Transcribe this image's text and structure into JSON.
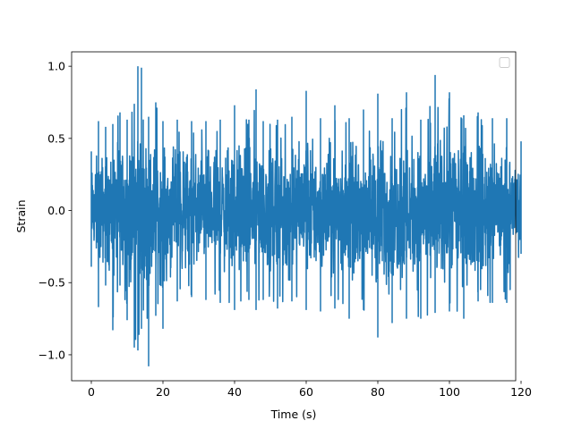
{
  "chart_data": {
    "type": "line",
    "title": "",
    "xlabel": "Time (s)",
    "ylabel": "Strain",
    "xlim": [
      -5.5,
      118.5
    ],
    "ylim": [
      -1.18,
      1.1
    ],
    "x_ticks": [
      0,
      20,
      40,
      60,
      80,
      100,
      120
    ],
    "x_tick_labels": [
      "0",
      "20",
      "40",
      "60",
      "80",
      "100",
      "120"
    ],
    "y_ticks": [
      -1.0,
      -0.5,
      0.0,
      0.5,
      1.0
    ],
    "y_tick_labels": [
      "−1.0",
      "−0.5",
      "0.0",
      "0.5",
      "1.0"
    ],
    "grid": false,
    "legend": {
      "placement": "top-right",
      "entries": []
    },
    "series": [
      {
        "color": "#1f77b4",
        "x_range": [
          0,
          120
        ],
        "envelope_x": [
          0,
          2,
          4,
          6,
          8,
          10,
          12,
          13,
          14,
          16,
          18,
          20,
          24,
          28,
          32,
          36,
          40,
          44,
          46,
          48,
          52,
          56,
          60,
          64,
          68,
          72,
          76,
          80,
          84,
          88,
          92,
          96,
          100,
          104,
          108,
          112,
          116,
          120
        ],
        "envelope_max": [
          0.41,
          0.62,
          0.58,
          0.6,
          0.68,
          0.63,
          0.74,
          1.0,
          0.99,
          0.65,
          0.75,
          0.62,
          0.63,
          0.62,
          0.62,
          0.63,
          0.73,
          0.63,
          0.84,
          0.62,
          0.63,
          0.65,
          0.83,
          0.64,
          0.73,
          0.64,
          0.7,
          0.81,
          0.64,
          0.82,
          0.63,
          0.94,
          0.82,
          0.66,
          0.68,
          0.64,
          0.64,
          0.48
        ],
        "envelope_min": [
          -0.39,
          -0.67,
          -0.52,
          -0.83,
          -0.52,
          -0.76,
          -0.95,
          -0.97,
          -0.82,
          -1.08,
          -0.73,
          -0.82,
          -0.63,
          -0.6,
          -0.62,
          -0.64,
          -0.69,
          -0.62,
          -0.69,
          -0.62,
          -0.68,
          -0.63,
          -0.69,
          -0.7,
          -0.68,
          -0.75,
          -0.69,
          -0.88,
          -0.78,
          -0.75,
          -0.75,
          -0.71,
          -0.7,
          -0.75,
          -0.63,
          -0.64,
          -0.64,
          -0.3
        ]
      }
    ]
  }
}
